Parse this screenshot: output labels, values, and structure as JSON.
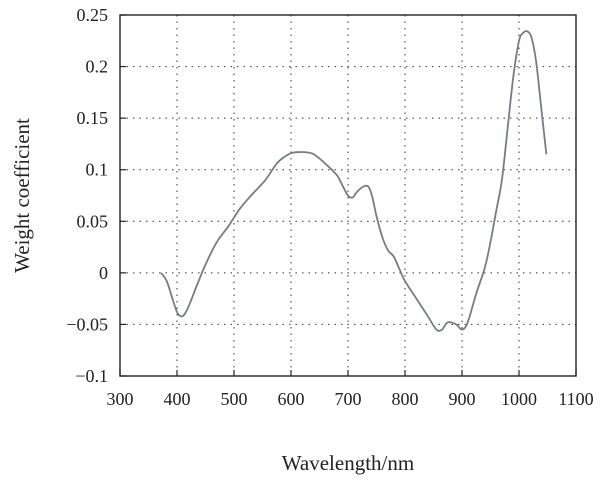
{
  "chart_data": {
    "type": "line",
    "title": "",
    "xlabel": "Wavelength/nm",
    "ylabel": "Weight coefficient",
    "xlim": [
      300,
      1100
    ],
    "ylim": [
      -0.1,
      0.25
    ],
    "xticks": [
      "300",
      "400",
      "500",
      "600",
      "700",
      "800",
      "900",
      "1000",
      "1100"
    ],
    "yticks": [
      "−0.1",
      "−0.05",
      "0",
      "0.05",
      "0.1",
      "0.15",
      "0.2",
      "0.25"
    ],
    "xtick_values": [
      300,
      400,
      500,
      600,
      700,
      800,
      900,
      1000,
      1100
    ],
    "ytick_values": [
      -0.1,
      -0.05,
      0,
      0.05,
      0.1,
      0.15,
      0.2,
      0.25
    ],
    "grid": "dotted",
    "line_color": "#6f7f86",
    "series": [
      {
        "x": [
          372,
          382,
          392,
          400,
          406,
          412,
          420,
          435,
          450,
          470,
          490,
          510,
          530,
          555,
          575,
          590,
          600,
          610,
          625,
          640,
          660,
          680,
          690,
          700,
          708,
          715,
          725,
          735,
          742,
          750,
          760,
          770,
          780,
          790,
          800,
          820,
          840,
          855,
          865,
          875,
          890,
          900,
          910,
          925,
          940,
          950,
          960,
          970,
          980,
          990,
          1000,
          1008,
          1015,
          1022,
          1030,
          1040,
          1048
        ],
        "y": [
          0.0,
          -0.008,
          -0.025,
          -0.038,
          -0.042,
          -0.041,
          -0.033,
          -0.012,
          0.008,
          0.03,
          0.045,
          0.062,
          0.075,
          0.09,
          0.106,
          0.113,
          0.116,
          0.117,
          0.117,
          0.115,
          0.106,
          0.095,
          0.085,
          0.075,
          0.073,
          0.078,
          0.083,
          0.084,
          0.075,
          0.055,
          0.035,
          0.022,
          0.016,
          0.004,
          -0.008,
          -0.025,
          -0.042,
          -0.055,
          -0.055,
          -0.048,
          -0.05,
          -0.055,
          -0.048,
          -0.02,
          0.005,
          0.03,
          0.06,
          0.09,
          0.14,
          0.19,
          0.225,
          0.233,
          0.234,
          0.228,
          0.205,
          0.155,
          0.115
        ]
      }
    ]
  }
}
